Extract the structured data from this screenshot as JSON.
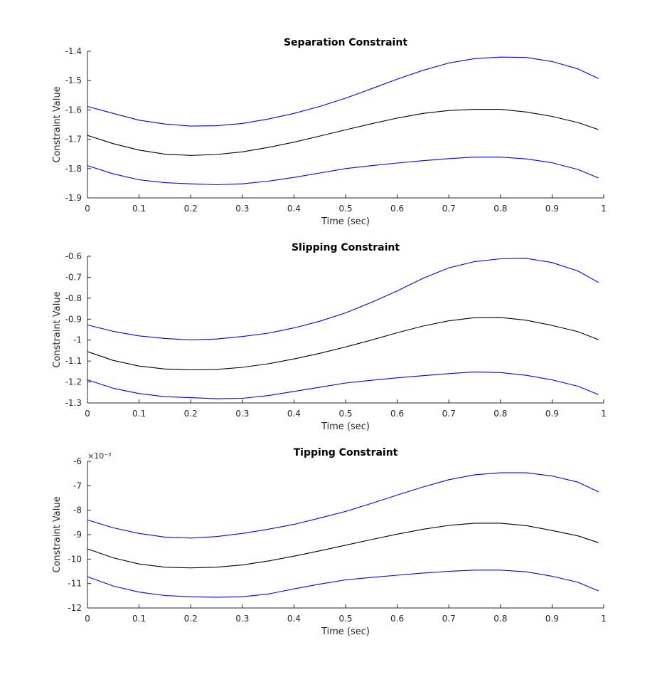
{
  "chart_data": [
    {
      "type": "line",
      "title": "Separation Constraint",
      "xlabel": "Time (sec)",
      "ylabel": "Constraint Value",
      "xlim": [
        0,
        1
      ],
      "ylim": [
        -1.9,
        -1.4
      ],
      "x_ticks": [
        "0",
        "0.1",
        "0.2",
        "0.3",
        "0.4",
        "0.5",
        "0.6",
        "0.7",
        "0.8",
        "0.9",
        "1"
      ],
      "y_ticks": [
        "-1.4",
        "-1.5",
        "-1.6",
        "-1.7",
        "-1.8",
        "-1.9"
      ],
      "exponent_label": "",
      "grid": false,
      "x": [
        0,
        0.05,
        0.1,
        0.15,
        0.2,
        0.25,
        0.3,
        0.35,
        0.4,
        0.45,
        0.5,
        0.55,
        0.6,
        0.65,
        0.7,
        0.75,
        0.8,
        0.85,
        0.9,
        0.95,
        0.99
      ],
      "series": [
        {
          "color": "#0000ff",
          "values": [
            -1.588,
            -1.612,
            -1.635,
            -1.648,
            -1.655,
            -1.654,
            -1.646,
            -1.631,
            -1.612,
            -1.588,
            -1.56,
            -1.528,
            -1.495,
            -1.465,
            -1.44,
            -1.425,
            -1.42,
            -1.421,
            -1.435,
            -1.46,
            -1.493
          ]
        },
        {
          "color": "#000000",
          "values": [
            -1.687,
            -1.715,
            -1.737,
            -1.751,
            -1.755,
            -1.752,
            -1.743,
            -1.728,
            -1.71,
            -1.689,
            -1.668,
            -1.647,
            -1.628,
            -1.612,
            -1.602,
            -1.598,
            -1.598,
            -1.607,
            -1.622,
            -1.643,
            -1.667
          ]
        },
        {
          "color": "#0000ff",
          "values": [
            -1.79,
            -1.818,
            -1.838,
            -1.848,
            -1.852,
            -1.855,
            -1.852,
            -1.843,
            -1.83,
            -1.815,
            -1.8,
            -1.79,
            -1.781,
            -1.773,
            -1.766,
            -1.761,
            -1.761,
            -1.767,
            -1.78,
            -1.803,
            -1.832
          ]
        }
      ]
    },
    {
      "type": "line",
      "title": "Slipping Constraint",
      "xlabel": "Time (sec)",
      "ylabel": "Constraint Value",
      "xlim": [
        0,
        1
      ],
      "ylim": [
        -1.3,
        -0.6
      ],
      "x_ticks": [
        "0",
        "0.1",
        "0.2",
        "0.3",
        "0.4",
        "0.5",
        "0.6",
        "0.7",
        "0.8",
        "0.9",
        "1"
      ],
      "y_ticks": [
        "-0.6",
        "-0.7",
        "-0.8",
        "-0.9",
        "-1",
        "-1.1",
        "-1.2",
        "-1.3"
      ],
      "exponent_label": "",
      "grid": false,
      "x": [
        0,
        0.05,
        0.1,
        0.15,
        0.2,
        0.25,
        0.3,
        0.35,
        0.4,
        0.45,
        0.5,
        0.55,
        0.6,
        0.65,
        0.7,
        0.75,
        0.8,
        0.85,
        0.9,
        0.95,
        0.99
      ],
      "series": [
        {
          "color": "#0000ff",
          "values": [
            -0.928,
            -0.958,
            -0.98,
            -0.992,
            -0.999,
            -0.995,
            -0.983,
            -0.967,
            -0.942,
            -0.91,
            -0.87,
            -0.82,
            -0.765,
            -0.705,
            -0.655,
            -0.625,
            -0.612,
            -0.61,
            -0.63,
            -0.67,
            -0.725
          ]
        },
        {
          "color": "#000000",
          "values": [
            -1.055,
            -1.097,
            -1.124,
            -1.138,
            -1.142,
            -1.14,
            -1.13,
            -1.113,
            -1.09,
            -1.063,
            -1.033,
            -1.0,
            -0.965,
            -0.933,
            -0.908,
            -0.893,
            -0.892,
            -0.905,
            -0.93,
            -0.96,
            -0.998
          ]
        },
        {
          "color": "#0000ff",
          "values": [
            -1.19,
            -1.23,
            -1.255,
            -1.27,
            -1.275,
            -1.28,
            -1.278,
            -1.265,
            -1.245,
            -1.225,
            -1.205,
            -1.192,
            -1.18,
            -1.17,
            -1.16,
            -1.152,
            -1.155,
            -1.168,
            -1.19,
            -1.22,
            -1.26
          ]
        }
      ]
    },
    {
      "type": "line",
      "title": "Tipping Constraint",
      "xlabel": "Time (sec)",
      "ylabel": "Constraint Value",
      "xlim": [
        0,
        1
      ],
      "ylim": [
        -12,
        -6
      ],
      "x_ticks": [
        "0",
        "0.1",
        "0.2",
        "0.3",
        "0.4",
        "0.5",
        "0.6",
        "0.7",
        "0.8",
        "0.9",
        "1"
      ],
      "y_ticks": [
        "-6",
        "-7",
        "-8",
        "-9",
        "-10",
        "-11",
        "-12"
      ],
      "exponent_label": "×10⁻³",
      "grid": false,
      "x": [
        0,
        0.05,
        0.1,
        0.15,
        0.2,
        0.25,
        0.3,
        0.35,
        0.4,
        0.45,
        0.5,
        0.55,
        0.6,
        0.65,
        0.7,
        0.75,
        0.8,
        0.85,
        0.9,
        0.95,
        0.99
      ],
      "series": [
        {
          "color": "#0000ff",
          "values": [
            -8.4,
            -8.72,
            -8.95,
            -9.1,
            -9.14,
            -9.08,
            -8.95,
            -8.78,
            -8.58,
            -8.32,
            -8.05,
            -7.72,
            -7.38,
            -7.05,
            -6.75,
            -6.55,
            -6.47,
            -6.47,
            -6.6,
            -6.85,
            -7.25
          ]
        },
        {
          "color": "#000000",
          "values": [
            -9.58,
            -9.95,
            -10.2,
            -10.33,
            -10.36,
            -10.33,
            -10.24,
            -10.08,
            -9.88,
            -9.66,
            -9.43,
            -9.2,
            -8.98,
            -8.78,
            -8.62,
            -8.53,
            -8.53,
            -8.63,
            -8.83,
            -9.05,
            -9.33
          ]
        },
        {
          "color": "#0000ff",
          "values": [
            -10.72,
            -11.1,
            -11.35,
            -11.49,
            -11.54,
            -11.56,
            -11.54,
            -11.43,
            -11.22,
            -11.02,
            -10.85,
            -10.75,
            -10.66,
            -10.57,
            -10.5,
            -10.45,
            -10.45,
            -10.52,
            -10.7,
            -10.95,
            -11.3
          ]
        }
      ]
    }
  ]
}
